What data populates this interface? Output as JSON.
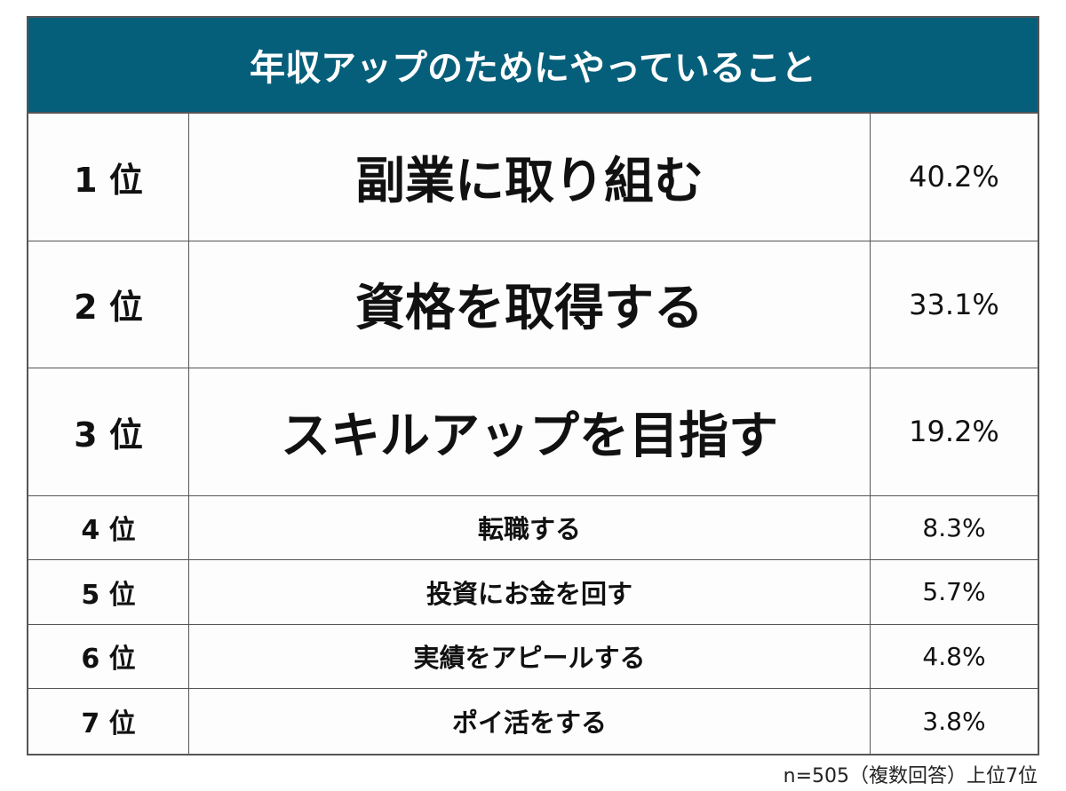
{
  "header": {
    "title": "年収アップのためにやっていること"
  },
  "table": {
    "rows": [
      [
        "1 位",
        "副業に取り組む",
        "40.2%"
      ],
      [
        "2 位",
        "資格を取得する",
        "33.1%"
      ],
      [
        "3 位",
        "スキルアップを目指す",
        "19.2%"
      ],
      [
        "4 位",
        "転職する",
        "8.3%"
      ],
      [
        "5 位",
        "投資にお金を回す",
        "5.7%"
      ],
      [
        "6 位",
        "実績をアピールする",
        "4.8%"
      ],
      [
        "7 位",
        "ポイ活をする",
        "3.8%"
      ]
    ]
  },
  "footnote": "n=505（複数回答）上位7位"
}
